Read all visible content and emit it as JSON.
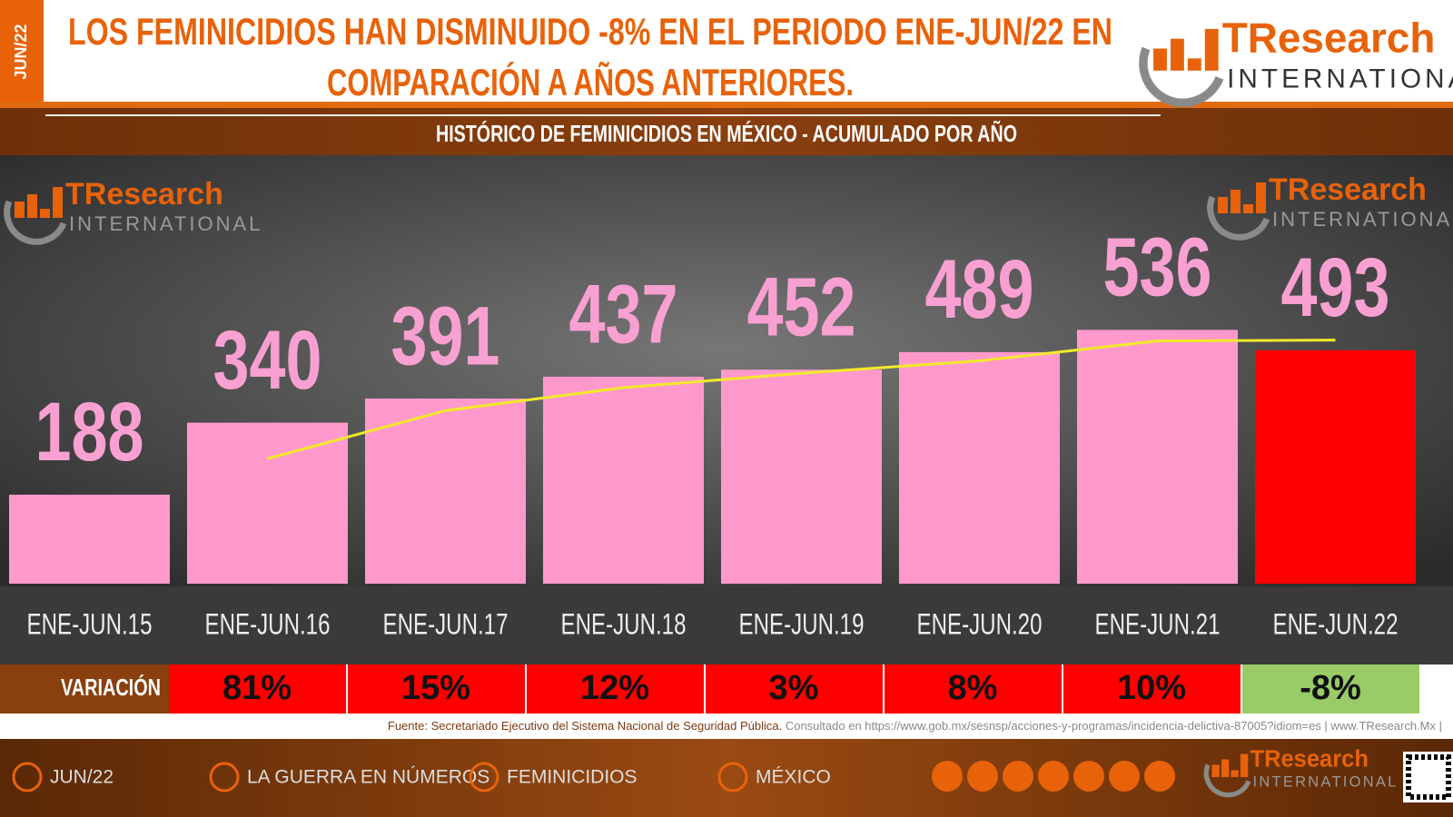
{
  "side_tag": "JUN/22",
  "title_lines": [
    "LOS FEMINICIDIOS HAN DISMINUIDO -8% EN EL PERIODO ENE-JUN/22 EN",
    "COMPARACIÓN A AÑOS ANTERIORES."
  ],
  "logo": {
    "name": "TResearch",
    "sub": "INTERNATIONAL"
  },
  "chart_data": {
    "type": "bar",
    "title": "HISTÓRICO DE FEMINICIDIOS EN MÉXICO -  ACUMULADO POR AÑO",
    "categories": [
      "ENE-JUN.15",
      "ENE-JUN.16",
      "ENE-JUN.17",
      "ENE-JUN.18",
      "ENE-JUN.19",
      "ENE-JUN.20",
      "ENE-JUN.21",
      "ENE-JUN.22"
    ],
    "values": [
      188,
      340,
      391,
      437,
      452,
      489,
      536,
      493
    ],
    "colors": [
      "#ff99cc",
      "#ff99cc",
      "#ff99cc",
      "#ff99cc",
      "#ff99cc",
      "#ff99cc",
      "#ff99cc",
      "#ff0000"
    ],
    "ylim": [
      0,
      600
    ],
    "trendline": {
      "type": "moving_average",
      "period": 2,
      "color": "#f2e92a"
    },
    "variation": {
      "label": "VARIACIÓN",
      "values": [
        81,
        15,
        12,
        3,
        8,
        10,
        -8
      ],
      "value_labels": [
        "81%",
        "15%",
        "12%",
        "3%",
        "8%",
        "10%",
        "-8%"
      ],
      "colors": [
        "#ff0000",
        "#ff0000",
        "#ff0000",
        "#ff0000",
        "#ff0000",
        "#ff0000",
        "#99cc66"
      ]
    }
  },
  "source": {
    "main": "Fuente: Secretariado Ejecutivo del Sistema Nacional de Seguridad Pública.",
    "rest": "Consultado en https://www.gob.mx/sesnsp/acciones-y-programas/incidencia-delictiva-87005?idiom=es | www.TResearch.Mx |"
  },
  "footer": {
    "items": [
      "JUN/22",
      "LA GUERRA EN NÚMEROS",
      "FEMINICIDIOS",
      "MÉXICO"
    ]
  }
}
